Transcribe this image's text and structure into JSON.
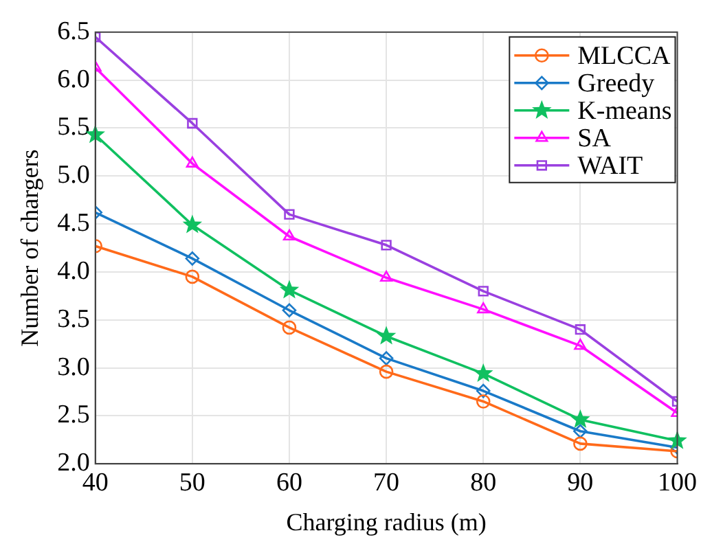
{
  "chart_data": {
    "type": "line",
    "xlabel": "Charging radius (m)",
    "ylabel": "Number of chargers",
    "x": [
      40,
      50,
      60,
      70,
      80,
      90,
      100
    ],
    "series": [
      {
        "name": "MLCCA",
        "color": "#ff6a1a",
        "marker": "circle",
        "values": [
          4.27,
          3.95,
          3.42,
          2.96,
          2.65,
          2.21,
          2.13
        ]
      },
      {
        "name": "Greedy",
        "color": "#1a7ac8",
        "marker": "diamond",
        "values": [
          4.62,
          4.14,
          3.6,
          3.1,
          2.76,
          2.34,
          2.17
        ]
      },
      {
        "name": "K-means",
        "color": "#10c060",
        "marker": "star",
        "values": [
          5.43,
          4.49,
          3.81,
          3.33,
          2.94,
          2.46,
          2.24
        ]
      },
      {
        "name": "SA",
        "color": "#ff10ff",
        "marker": "triangle",
        "values": [
          6.13,
          5.13,
          4.37,
          3.94,
          3.61,
          3.23,
          2.53
        ]
      },
      {
        "name": "WAIT",
        "color": "#9a40e0",
        "marker": "square",
        "values": [
          6.45,
          5.55,
          4.6,
          4.28,
          3.8,
          3.4,
          2.65
        ]
      }
    ],
    "xlim": [
      40,
      100
    ],
    "xticks": [
      40,
      50,
      60,
      70,
      80,
      90,
      100
    ],
    "ylim": [
      2,
      6.5
    ],
    "yticks": [
      {
        "value": 2,
        "label": "2.0"
      },
      2.5,
      {
        "value": 3,
        "label": "3.0"
      },
      3.5,
      {
        "value": 4,
        "label": "4.0"
      },
      4.5,
      {
        "value": 5,
        "label": "5.0"
      },
      5.5,
      {
        "value": 6,
        "label": "6.0"
      },
      6.5
    ],
    "grid": true,
    "legend": "top right"
  }
}
